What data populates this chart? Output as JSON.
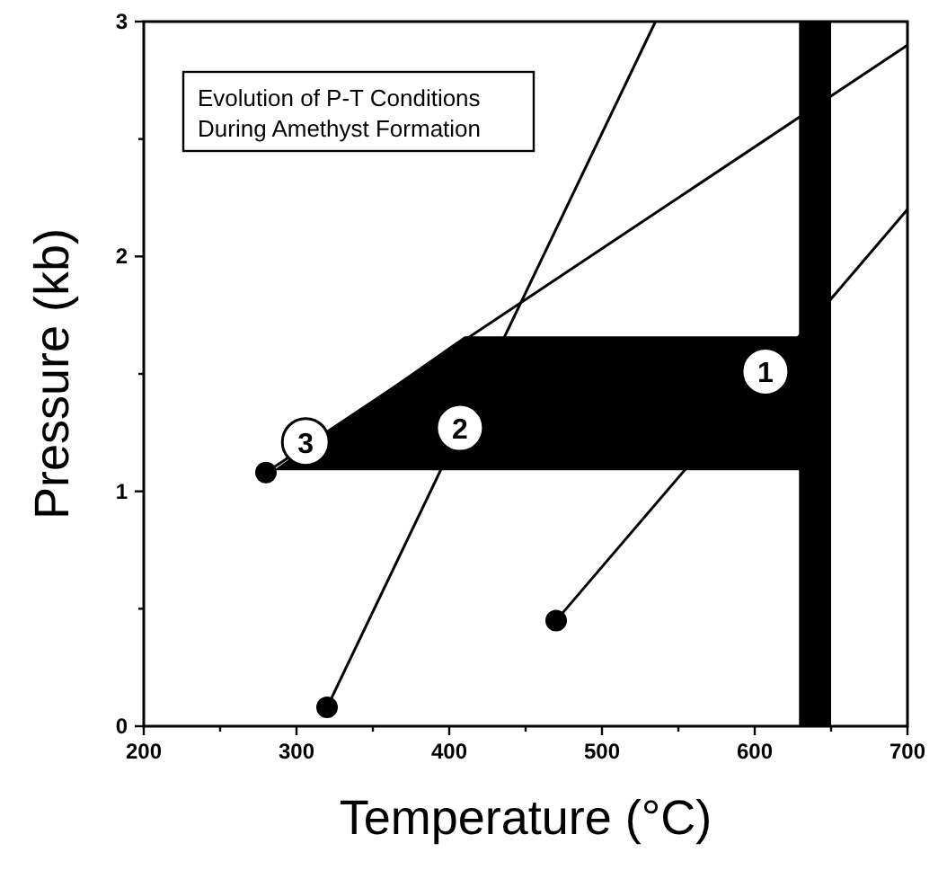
{
  "chart_data": {
    "type": "line",
    "title": "Evolution of P-T Conditions\nDuring Amethyst Formation",
    "xlabel": "Temperature (°C)",
    "ylabel": "Pressure (kb)",
    "xlim": [
      200,
      700
    ],
    "xticks": [
      200,
      {
        "value": 250,
        "label": null
      },
      300,
      {
        "value": 350,
        "label": null
      },
      400,
      {
        "value": 450,
        "label": null
      },
      500,
      {
        "value": 550,
        "label": null
      },
      600,
      {
        "value": 650,
        "label": null
      },
      700
    ],
    "ylim": [
      0,
      3
    ],
    "yticks": [
      0,
      {
        "value": 0.5,
        "label": null
      },
      1,
      {
        "value": 1.5,
        "label": null
      },
      2,
      {
        "value": 2.5,
        "label": null
      },
      3
    ],
    "grid": false,
    "bands": [
      {
        "axis": "x",
        "from": 629,
        "to": 650,
        "color": "#000000"
      }
    ],
    "series": [
      {
        "type": "area",
        "color": "#000000",
        "x": [
          285,
          410,
          630,
          630,
          285
        ],
        "values": [
          1.09,
          1.66,
          1.66,
          1.09,
          1.09
        ]
      },
      {
        "color": "#000000",
        "x": [
          320,
          535
        ],
        "values": [
          0.08,
          3
        ],
        "marker": "none",
        "line_style": "solid"
      },
      {
        "color": "#000000",
        "x": [
          280,
          700
        ],
        "values": [
          1.08,
          2.9
        ],
        "marker": "none",
        "line_style": "solid"
      },
      {
        "color": "#000000",
        "x": [
          470,
          700
        ],
        "values": [
          0.45,
          2.2
        ],
        "marker": "none",
        "line_style": "solid"
      },
      {
        "type": "scatter",
        "color": "#000000",
        "x": [
          280,
          320,
          470
        ],
        "values": [
          1.08,
          0.08,
          0.45
        ],
        "marker": "circle"
      }
    ],
    "annotations": [
      {
        "text": "1",
        "x": 607,
        "y": 1.51
      },
      {
        "text": "2",
        "x": 407,
        "y": 1.27
      },
      {
        "text": "3",
        "x": 306,
        "y": 1.21
      }
    ]
  }
}
